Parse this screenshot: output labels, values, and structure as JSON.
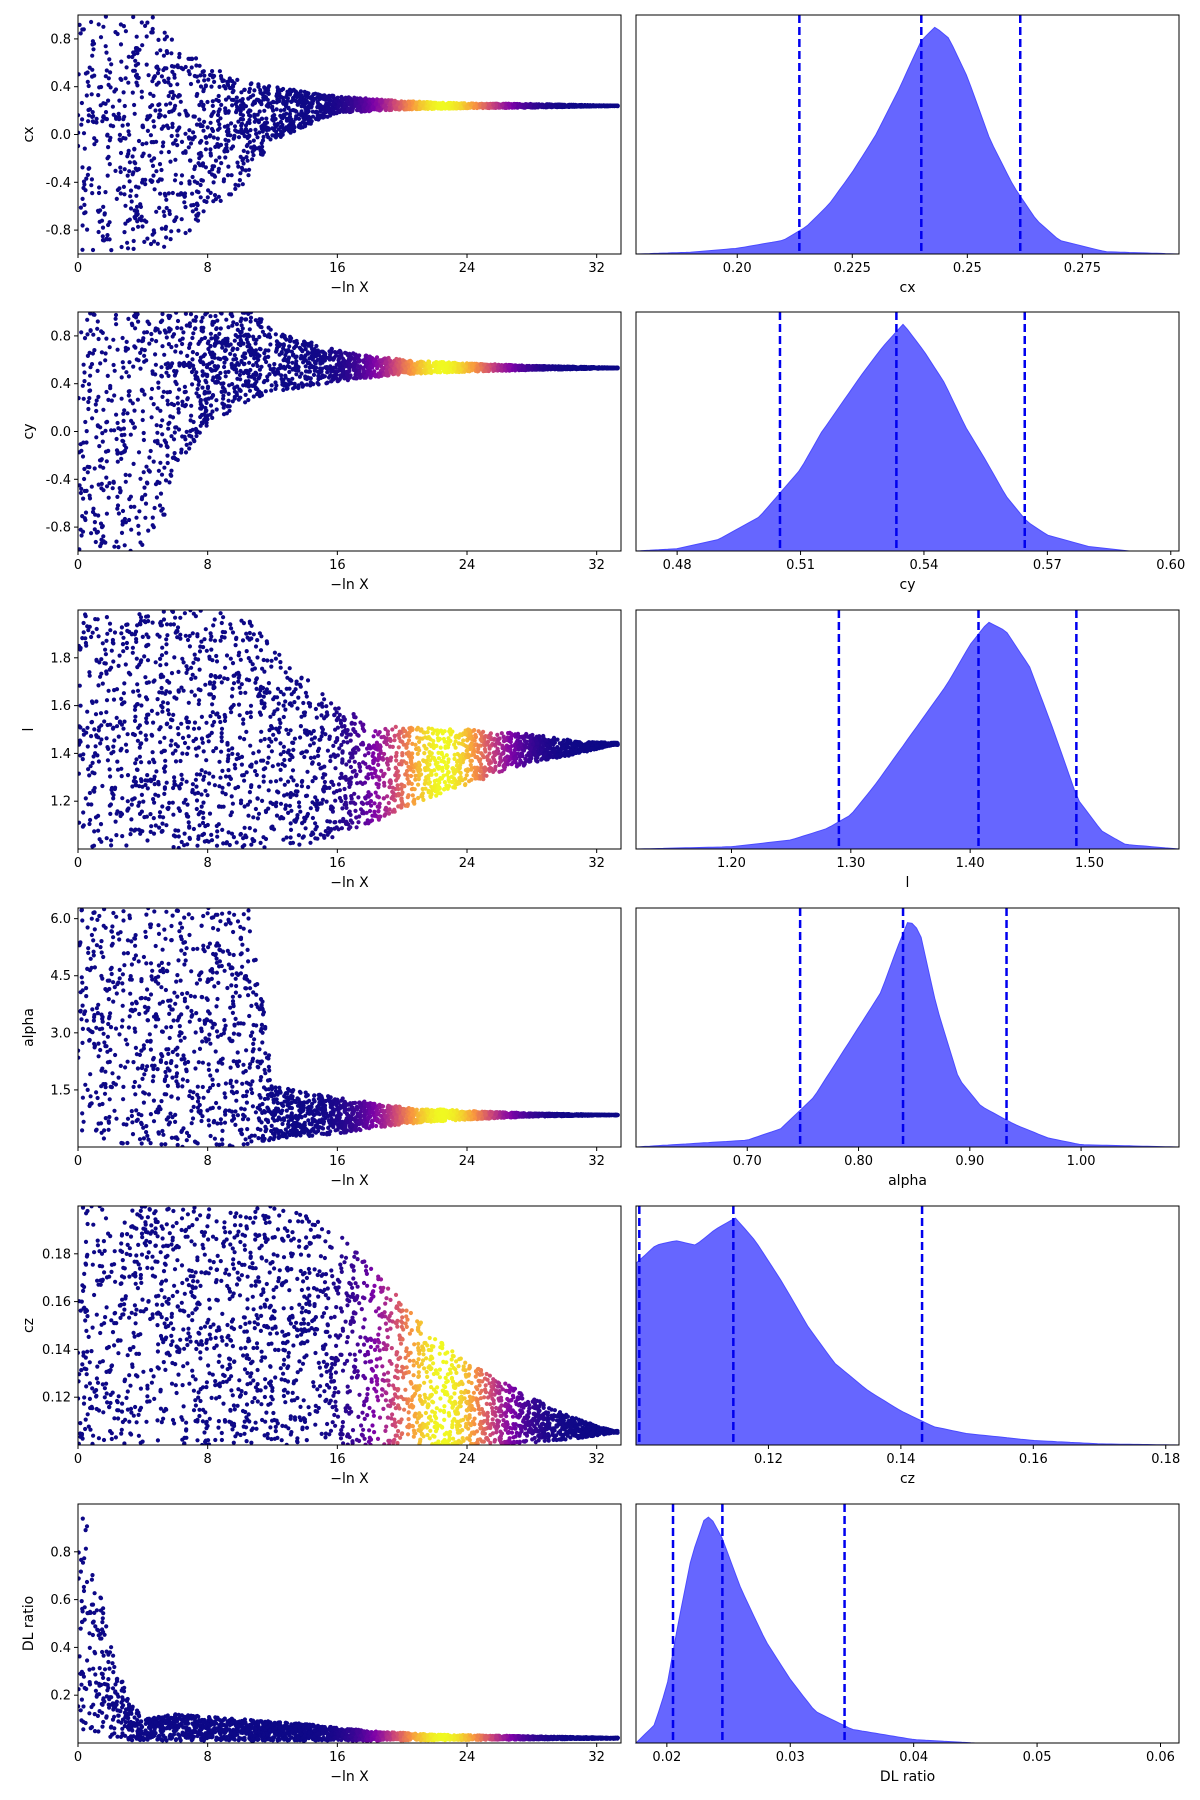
{
  "figure": {
    "type": "dynesty trace plot",
    "left_xlabel": "−ln X",
    "trace_color_scale": [
      "#0d0887",
      "#7e03a8",
      "#cc4778",
      "#f89540",
      "#f0f921"
    ],
    "posterior_fill_color": "#4b4bff",
    "quantile_line_color": "#0000ee"
  },
  "chart_data": [
    {
      "type": "scatter",
      "parameter": "cx",
      "trace": {
        "xlabel": "−ln X",
        "ylabel": "cx",
        "xlim": [
          0,
          33.5
        ],
        "ylim": [
          -1.0,
          1.0
        ],
        "xticks": [
          0,
          8,
          16,
          24,
          32
        ],
        "yticks": [
          -0.8,
          -0.4,
          0.0,
          0.4,
          0.8
        ],
        "envelope": [
          [
            0,
            -1.0,
            1.0
          ],
          [
            4.5,
            -1.0,
            1.0
          ],
          [
            6,
            -0.95,
            0.78
          ],
          [
            8,
            -0.65,
            0.58
          ],
          [
            10,
            -0.45,
            0.45
          ],
          [
            12,
            -0.05,
            0.4
          ],
          [
            16,
            0.18,
            0.32
          ],
          [
            20,
            0.21,
            0.28
          ],
          [
            24,
            0.22,
            0.26
          ],
          [
            28,
            0.225,
            0.255
          ],
          [
            33,
            0.238,
            0.242
          ]
        ],
        "peak_x": 22.5
      },
      "posterior": {
        "xlabel": "cx",
        "xlim": [
          0.178,
          0.296
        ],
        "xticks": [
          0.2,
          0.225,
          0.25,
          0.275
        ],
        "quantiles": [
          0.2135,
          0.24,
          0.2615
        ],
        "density": [
          [
            0.178,
            0.0
          ],
          [
            0.19,
            0.008
          ],
          [
            0.2,
            0.025
          ],
          [
            0.21,
            0.06
          ],
          [
            0.215,
            0.12
          ],
          [
            0.22,
            0.22
          ],
          [
            0.225,
            0.36
          ],
          [
            0.23,
            0.52
          ],
          [
            0.235,
            0.72
          ],
          [
            0.24,
            0.94
          ],
          [
            0.243,
            1.0
          ],
          [
            0.246,
            0.95
          ],
          [
            0.25,
            0.78
          ],
          [
            0.255,
            0.5
          ],
          [
            0.26,
            0.3
          ],
          [
            0.265,
            0.15
          ],
          [
            0.27,
            0.06
          ],
          [
            0.28,
            0.01
          ],
          [
            0.296,
            0.0
          ]
        ]
      }
    },
    {
      "type": "scatter",
      "parameter": "cy",
      "trace": {
        "xlabel": "−ln X",
        "ylabel": "cy",
        "xlim": [
          0,
          33.5
        ],
        "ylim": [
          -1.0,
          1.0
        ],
        "xticks": [
          0,
          8,
          16,
          24,
          32
        ],
        "yticks": [
          -0.8,
          -0.4,
          0.0,
          0.4,
          0.8
        ],
        "envelope": [
          [
            0,
            -1.0,
            1.0
          ],
          [
            3.5,
            -1.0,
            1.0
          ],
          [
            5,
            -0.95,
            1.0
          ],
          [
            6,
            -0.3,
            1.0
          ],
          [
            8,
            0.05,
            1.0
          ],
          [
            11,
            0.28,
            1.0
          ],
          [
            12,
            0.32,
            0.85
          ],
          [
            16,
            0.42,
            0.68
          ],
          [
            20,
            0.48,
            0.6
          ],
          [
            24,
            0.5,
            0.57
          ],
          [
            28,
            0.515,
            0.55
          ],
          [
            33,
            0.528,
            0.535
          ]
        ],
        "peak_x": 22.5
      },
      "posterior": {
        "xlabel": "cy",
        "xlim": [
          0.47,
          0.602
        ],
        "xticks": [
          0.48,
          0.51,
          0.54,
          0.57,
          0.6
        ],
        "quantiles": [
          0.505,
          0.5333,
          0.5645
        ],
        "density": [
          [
            0.47,
            0.0
          ],
          [
            0.48,
            0.01
          ],
          [
            0.49,
            0.05
          ],
          [
            0.5,
            0.15
          ],
          [
            0.51,
            0.36
          ],
          [
            0.515,
            0.52
          ],
          [
            0.52,
            0.65
          ],
          [
            0.525,
            0.78
          ],
          [
            0.53,
            0.9
          ],
          [
            0.535,
            1.0
          ],
          [
            0.54,
            0.88
          ],
          [
            0.545,
            0.74
          ],
          [
            0.55,
            0.55
          ],
          [
            0.555,
            0.4
          ],
          [
            0.56,
            0.24
          ],
          [
            0.565,
            0.13
          ],
          [
            0.57,
            0.07
          ],
          [
            0.58,
            0.02
          ],
          [
            0.59,
            0.0
          ],
          [
            0.602,
            0.0
          ]
        ]
      }
    },
    {
      "type": "scatter",
      "parameter": "l",
      "trace": {
        "xlabel": "−ln X",
        "ylabel": "l",
        "xlim": [
          0,
          33.5
        ],
        "ylim": [
          1.0,
          2.0
        ],
        "xticks": [
          0,
          8,
          16,
          24,
          32
        ],
        "yticks": [
          1.2,
          1.4,
          1.6,
          1.8
        ],
        "envelope": [
          [
            0,
            1.0,
            2.0
          ],
          [
            10,
            1.0,
            2.0
          ],
          [
            12,
            1.0,
            1.85
          ],
          [
            14,
            1.02,
            1.72
          ],
          [
            16,
            1.05,
            1.6
          ],
          [
            18,
            1.1,
            1.53
          ],
          [
            20,
            1.17,
            1.51
          ],
          [
            24,
            1.27,
            1.5
          ],
          [
            28,
            1.36,
            1.48
          ],
          [
            31,
            1.4,
            1.45
          ],
          [
            33,
            1.435,
            1.445
          ]
        ],
        "peak_x": 22.5
      },
      "posterior": {
        "xlabel": "l",
        "xlim": [
          1.12,
          1.575
        ],
        "xticks": [
          1.2,
          1.3,
          1.4,
          1.5
        ],
        "quantiles": [
          1.29,
          1.407,
          1.489
        ],
        "density": [
          [
            1.12,
            0.0
          ],
          [
            1.2,
            0.01
          ],
          [
            1.25,
            0.04
          ],
          [
            1.28,
            0.09
          ],
          [
            1.3,
            0.15
          ],
          [
            1.32,
            0.28
          ],
          [
            1.35,
            0.5
          ],
          [
            1.38,
            0.72
          ],
          [
            1.4,
            0.9
          ],
          [
            1.415,
            1.0
          ],
          [
            1.43,
            0.96
          ],
          [
            1.45,
            0.8
          ],
          [
            1.47,
            0.52
          ],
          [
            1.49,
            0.22
          ],
          [
            1.51,
            0.08
          ],
          [
            1.53,
            0.02
          ],
          [
            1.575,
            0.0
          ]
        ]
      }
    },
    {
      "type": "scatter",
      "parameter": "alpha",
      "trace": {
        "xlabel": "−ln X",
        "ylabel": "alpha",
        "xlim": [
          0,
          33.5
        ],
        "ylim": [
          0.0,
          6.28
        ],
        "xticks": [
          0,
          8,
          16,
          24,
          32
        ],
        "yticks": [
          1.5,
          3.0,
          4.5,
          6.0
        ],
        "envelope": [
          [
            0,
            0.0,
            6.28
          ],
          [
            10.5,
            0.0,
            6.28
          ],
          [
            11.5,
            0.1,
            3.5
          ],
          [
            12,
            0.2,
            1.6
          ],
          [
            16,
            0.35,
            1.3
          ],
          [
            20,
            0.6,
            1.05
          ],
          [
            24,
            0.72,
            0.95
          ],
          [
            28,
            0.8,
            0.88
          ],
          [
            33,
            0.835,
            0.845
          ]
        ],
        "peak_x": 22.5
      },
      "posterior": {
        "xlabel": "alpha",
        "xlim": [
          0.6,
          1.088
        ],
        "xticks": [
          0.7,
          0.8,
          0.9,
          1.0
        ],
        "quantiles": [
          0.7475,
          0.84,
          0.933
        ],
        "density": [
          [
            0.6,
            0.0
          ],
          [
            0.7,
            0.03
          ],
          [
            0.73,
            0.08
          ],
          [
            0.76,
            0.22
          ],
          [
            0.79,
            0.45
          ],
          [
            0.82,
            0.68
          ],
          [
            0.835,
            0.88
          ],
          [
            0.845,
            1.0
          ],
          [
            0.855,
            0.95
          ],
          [
            0.87,
            0.62
          ],
          [
            0.89,
            0.3
          ],
          [
            0.91,
            0.18
          ],
          [
            0.94,
            0.1
          ],
          [
            0.97,
            0.04
          ],
          [
            1.0,
            0.01
          ],
          [
            1.088,
            0.0
          ]
        ]
      }
    },
    {
      "type": "scatter",
      "parameter": "cz",
      "trace": {
        "xlabel": "−ln X",
        "ylabel": "cz",
        "xlim": [
          0,
          33.5
        ],
        "ylim": [
          0.1,
          0.2
        ],
        "xticks": [
          0,
          8,
          16,
          24,
          32
        ],
        "yticks": [
          0.12,
          0.14,
          0.16,
          0.18
        ],
        "envelope": [
          [
            0,
            0.1,
            0.2
          ],
          [
            13,
            0.1,
            0.2
          ],
          [
            16,
            0.1,
            0.19
          ],
          [
            18,
            0.1,
            0.175
          ],
          [
            20,
            0.1,
            0.16
          ],
          [
            22,
            0.1,
            0.145
          ],
          [
            24,
            0.1,
            0.135
          ],
          [
            26,
            0.1,
            0.127
          ],
          [
            28,
            0.101,
            0.12
          ],
          [
            30,
            0.102,
            0.113
          ],
          [
            32,
            0.104,
            0.108
          ],
          [
            33,
            0.105,
            0.106
          ]
        ],
        "peak_x": 22.5
      },
      "posterior": {
        "xlabel": "cz",
        "xlim": [
          0.1,
          0.182
        ],
        "xticks": [
          0.12,
          0.14,
          0.16,
          0.18
        ],
        "quantiles": [
          0.1005,
          0.1147,
          0.1432
        ],
        "density": [
          [
            0.1,
            0.8
          ],
          [
            0.103,
            0.88
          ],
          [
            0.106,
            0.9
          ],
          [
            0.109,
            0.88
          ],
          [
            0.112,
            0.95
          ],
          [
            0.115,
            1.0
          ],
          [
            0.118,
            0.9
          ],
          [
            0.122,
            0.72
          ],
          [
            0.126,
            0.52
          ],
          [
            0.13,
            0.36
          ],
          [
            0.135,
            0.24
          ],
          [
            0.14,
            0.15
          ],
          [
            0.145,
            0.08
          ],
          [
            0.15,
            0.05
          ],
          [
            0.16,
            0.02
          ],
          [
            0.17,
            0.005
          ],
          [
            0.182,
            0.0
          ]
        ]
      }
    },
    {
      "type": "scatter",
      "parameter": "DL ratio",
      "trace": {
        "xlabel": "−ln X",
        "ylabel": "DL ratio",
        "xlim": [
          0,
          33.5
        ],
        "ylim": [
          0.0,
          1.0
        ],
        "xticks": [
          0,
          8,
          16,
          24,
          32
        ],
        "yticks": [
          0.2,
          0.4,
          0.6,
          0.8
        ],
        "envelope": [
          [
            0,
            0.05,
            1.0
          ],
          [
            0.6,
            0.05,
            0.95
          ],
          [
            1,
            0.04,
            0.75
          ],
          [
            1.5,
            0.03,
            0.58
          ],
          [
            2,
            0.02,
            0.42
          ],
          [
            3,
            0.01,
            0.2
          ],
          [
            4,
            0.01,
            0.1
          ],
          [
            6,
            0.01,
            0.12
          ],
          [
            10,
            0.01,
            0.1
          ],
          [
            14,
            0.01,
            0.08
          ],
          [
            18,
            0.01,
            0.05
          ],
          [
            22,
            0.012,
            0.035
          ],
          [
            28,
            0.015,
            0.028
          ],
          [
            33,
            0.018,
            0.022
          ]
        ],
        "peak_x": 22.5
      },
      "posterior": {
        "xlabel": "DL ratio",
        "xlim": [
          0.0175,
          0.0615
        ],
        "xticks": [
          0.02,
          0.03,
          0.04,
          0.05,
          0.06
        ],
        "quantiles": [
          0.0205,
          0.0245,
          0.0344
        ],
        "density": [
          [
            0.0175,
            0.0
          ],
          [
            0.019,
            0.08
          ],
          [
            0.02,
            0.25
          ],
          [
            0.021,
            0.55
          ],
          [
            0.022,
            0.82
          ],
          [
            0.023,
            0.98
          ],
          [
            0.0235,
            1.0
          ],
          [
            0.0245,
            0.9
          ],
          [
            0.026,
            0.68
          ],
          [
            0.028,
            0.45
          ],
          [
            0.03,
            0.28
          ],
          [
            0.032,
            0.14
          ],
          [
            0.035,
            0.06
          ],
          [
            0.04,
            0.015
          ],
          [
            0.045,
            0.0
          ],
          [
            0.0615,
            0.0
          ]
        ]
      }
    }
  ]
}
